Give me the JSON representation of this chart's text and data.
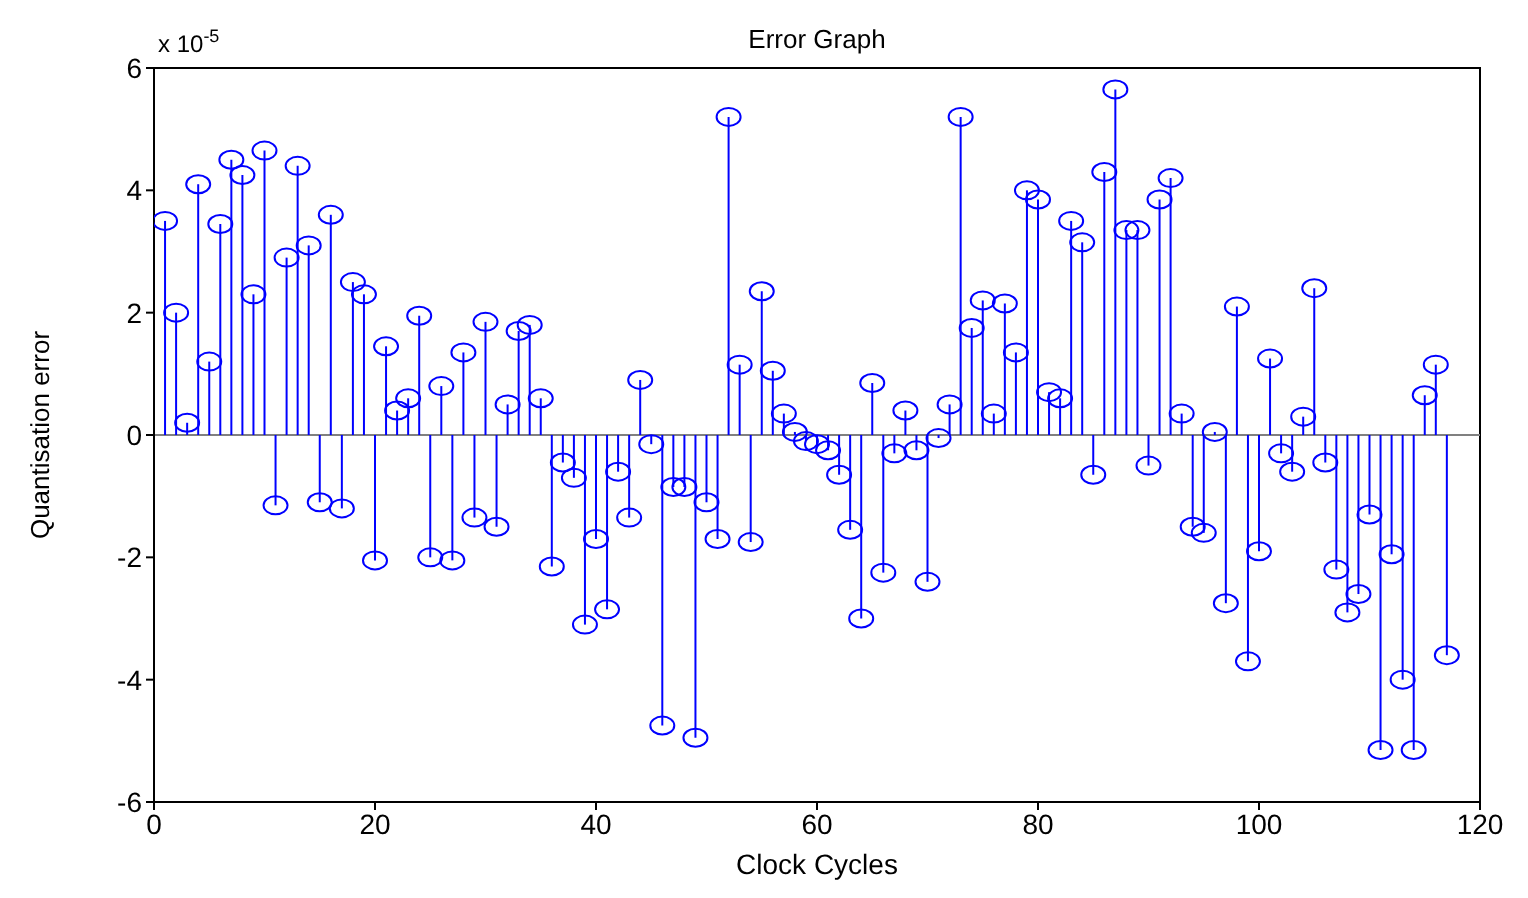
{
  "chart_data": {
    "type": "lollipop",
    "title": "Error Graph",
    "xlabel": "Clock Cycles",
    "ylabel": "Quantisation error",
    "annotations": [
      "x 10$^{-5}$"
    ],
    "x": [
      1,
      2,
      3,
      4,
      5,
      6,
      7,
      8,
      9,
      10,
      11,
      12,
      13,
      14,
      15,
      16,
      17,
      18,
      19,
      20,
      21,
      22,
      23,
      24,
      25,
      26,
      27,
      28,
      29,
      30,
      31,
      32,
      33,
      34,
      35,
      36,
      37,
      38,
      39,
      40,
      41,
      42,
      43,
      44,
      45,
      46,
      47,
      48,
      49,
      50,
      51,
      52,
      53,
      54,
      55,
      56,
      57,
      58,
      59,
      60,
      61,
      62,
      63,
      64,
      65,
      66,
      67,
      68,
      69,
      70,
      71,
      72,
      73,
      74,
      75,
      76,
      77,
      78,
      79,
      80,
      81,
      82,
      83,
      84,
      85,
      86,
      87,
      88,
      89,
      90,
      91,
      92,
      93,
      94,
      95,
      96,
      97,
      98,
      99,
      100,
      101,
      102,
      103,
      104,
      105,
      106,
      107,
      108,
      109,
      110,
      111,
      112,
      113,
      114,
      115,
      116,
      117
    ],
    "series": [
      {
        "color": "#0000ff",
        "values": [
          3.5,
          2.0,
          0.2,
          4.1,
          1.2,
          3.45,
          4.5,
          4.25,
          2.3,
          4.65,
          -1.15,
          2.9,
          4.4,
          3.1,
          -1.1,
          3.6,
          -1.2,
          2.5,
          2.3,
          -2.05,
          1.45,
          0.4,
          0.6,
          1.95,
          -2.0,
          0.8,
          -2.05,
          1.35,
          -1.35,
          1.85,
          -1.5,
          0.5,
          1.7,
          1.8,
          0.6,
          -2.15,
          -0.45,
          -0.7,
          -3.1,
          -1.7,
          -2.85,
          -0.6,
          -1.35,
          0.9,
          -0.15,
          -4.75,
          -0.85,
          -0.85,
          -4.95,
          -1.1,
          -1.7,
          5.2,
          1.15,
          -1.75,
          2.35,
          1.05,
          0.35,
          0.05,
          -0.1,
          -0.15,
          -0.25,
          -0.65,
          -1.55,
          -3.0,
          0.85,
          -2.25,
          -0.3,
          0.4,
          -0.25,
          -2.4,
          -0.05,
          0.5,
          5.2,
          1.75,
          2.2,
          0.35,
          2.15,
          1.35,
          4.0,
          3.85,
          0.7,
          0.6,
          3.5,
          3.15,
          -0.65,
          4.3,
          5.65,
          3.35,
          3.35,
          -0.5,
          3.85,
          4.2,
          0.35,
          -1.5,
          -1.6,
          0.05,
          -2.75,
          2.1,
          -3.7,
          -1.9,
          1.25,
          -0.3,
          -0.6,
          0.3,
          2.4,
          -0.45,
          -2.2,
          -2.9,
          -2.6,
          -1.3,
          -5.15,
          -1.95,
          -4.0,
          -5.15,
          0.65,
          1.15,
          -3.6
        ]
      }
    ],
    "xlim": [
      0,
      120
    ],
    "xticks": [
      0,
      20,
      40,
      60,
      80,
      100,
      120
    ],
    "ylim": [
      -6,
      6
    ],
    "yticks": [
      -6,
      -4,
      -2,
      0,
      2,
      4,
      6
    ],
    "marker": "circle"
  }
}
